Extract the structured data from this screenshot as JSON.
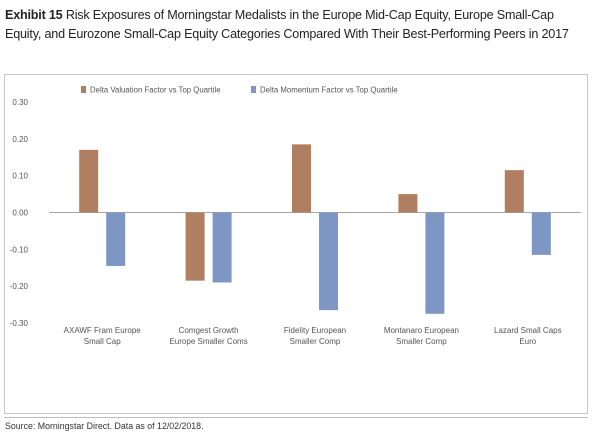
{
  "header": {
    "exhibit_label": "Exhibit 15",
    "title_text": "Risk Exposures of Morningstar Medalists in the Europe Mid-Cap Equity, Europe Small-Cap Equity, and Eurozone Small-Cap Equity Categories Compared With Their Best-Performing Peers in 2017"
  },
  "footer": {
    "source": "Source: Morningstar Direct. Data as of 12/02/2018."
  },
  "colors": {
    "series_1": "#b07f62",
    "series_2": "#7d96c4",
    "axis_text": "#555555",
    "zero_line": "#a6a6a6"
  },
  "chart_data": {
    "type": "bar",
    "categories": [
      [
        "AXAWF Fram Europe",
        "Small Cap"
      ],
      [
        "Comgest Growth",
        "Europe Smaller Coms"
      ],
      [
        "Fidelity European",
        "Smaller Comp"
      ],
      [
        "Montanaro European",
        "Smaller Comp"
      ],
      [
        "Lazard Small Caps",
        "Euro"
      ]
    ],
    "series": [
      {
        "name": "Delta Valuation Factor vs Top Quartile",
        "values": [
          0.17,
          -0.185,
          0.185,
          0.05,
          0.115
        ]
      },
      {
        "name": "Delta Momentum Factor vs Top Quartile",
        "values": [
          -0.145,
          -0.19,
          -0.265,
          -0.275,
          -0.115
        ]
      }
    ],
    "yticks": [
      "0.30",
      "0.20",
      "0.10",
      "0.00",
      "-0.10",
      "-0.20",
      "-0.30"
    ],
    "ylim": [
      -0.3,
      0.3
    ],
    "legend_position": "top",
    "grid": false
  }
}
